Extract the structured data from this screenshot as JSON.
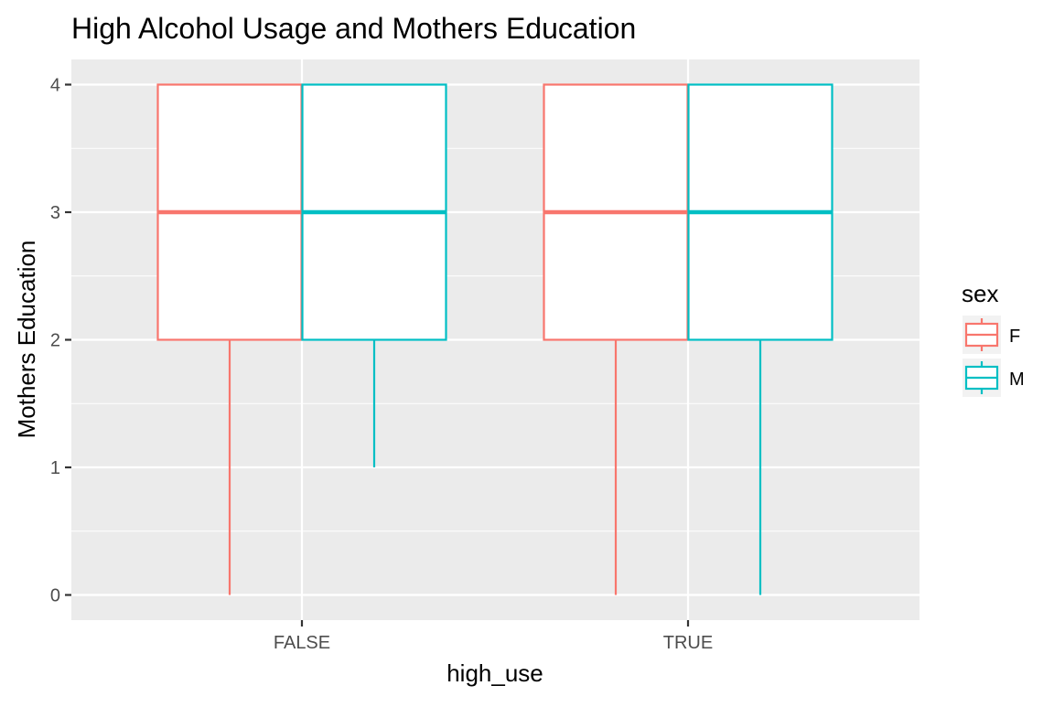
{
  "chart_data": {
    "type": "boxplot",
    "title": "High Alcohol Usage and Mothers Education",
    "xlabel": "high_use",
    "ylabel": "Mothers Education",
    "categories": [
      "FALSE",
      "TRUE"
    ],
    "ylim": [
      -0.2,
      4.2
    ],
    "yticks": [
      0,
      1,
      2,
      3,
      4
    ],
    "grid": true,
    "legend": {
      "title": "sex",
      "position": "right"
    },
    "series": [
      {
        "name": "F",
        "color": "#F8766D",
        "boxes": [
          {
            "category": "FALSE",
            "min": 0,
            "q1": 2,
            "median": 3,
            "q3": 4,
            "max": 4
          },
          {
            "category": "TRUE",
            "min": 0,
            "q1": 2,
            "median": 3,
            "q3": 4,
            "max": 4
          }
        ]
      },
      {
        "name": "M",
        "color": "#00BFC4",
        "boxes": [
          {
            "category": "FALSE",
            "min": 1,
            "q1": 2,
            "median": 3,
            "q3": 4,
            "max": 4
          },
          {
            "category": "TRUE",
            "min": 0,
            "q1": 2,
            "median": 3,
            "q3": 4,
            "max": 4
          }
        ]
      }
    ]
  }
}
